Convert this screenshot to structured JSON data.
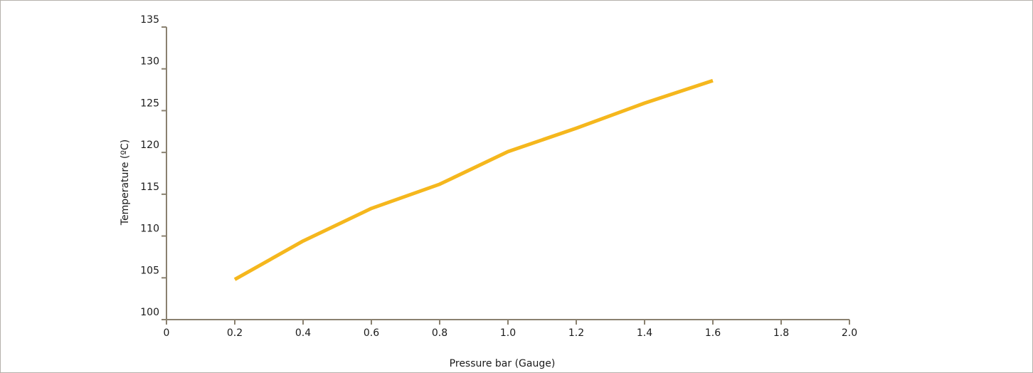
{
  "chart_data": {
    "type": "line",
    "xlabel": "Pressure bar (Gauge)",
    "ylabel": "Temperature (ºC)",
    "xlim": [
      0,
      2.0
    ],
    "ylim": [
      100,
      135
    ],
    "x_ticks": [
      "0",
      "0.2",
      "0.4",
      "0.6",
      "0.8",
      "1.0",
      "1.2",
      "1.4",
      "1.6",
      "1.8",
      "2.0"
    ],
    "y_ticks": [
      "100",
      "105",
      "110",
      "115",
      "120",
      "125",
      "130",
      "135"
    ],
    "grid": false,
    "legend": "none",
    "series": [
      {
        "color": "#f5b71d",
        "x": [
          0.2,
          0.4,
          0.6,
          0.8,
          1.0,
          1.2,
          1.4,
          1.6
        ],
        "y": [
          104.8,
          109.4,
          113.3,
          116.2,
          120.1,
          122.9,
          125.9,
          128.6
        ]
      }
    ]
  },
  "colors": {
    "axis": "#8a8170",
    "border": "#b5b1ab"
  }
}
